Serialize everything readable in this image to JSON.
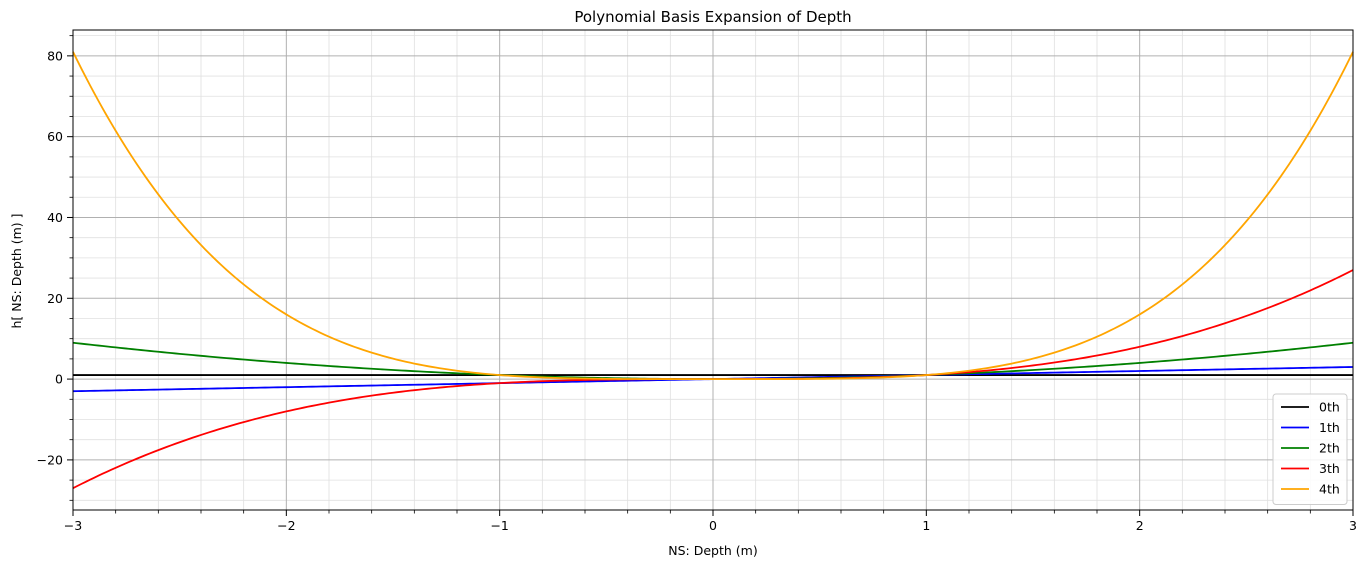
{
  "chart_data": {
    "type": "line",
    "title": "Polynomial Basis Expansion of Depth",
    "xlabel": "NS: Depth (m)",
    "ylabel": "h[ NS: Depth (m) ]",
    "xlim": [
      -3,
      3
    ],
    "ylim": [
      -32.4,
      86.4
    ],
    "x_ticks": [
      -3,
      -2,
      -1,
      0,
      1,
      2,
      3
    ],
    "x_tick_labels": [
      "−3",
      "−2",
      "−1",
      "0",
      "1",
      "2",
      "3"
    ],
    "y_ticks": [
      -20,
      0,
      20,
      40,
      60,
      80
    ],
    "y_tick_labels": [
      "−20",
      "0",
      "20",
      "40",
      "60",
      "80"
    ],
    "x_minor_step": 0.2,
    "y_minor_step": 5,
    "grid": {
      "major": true,
      "minor": true
    },
    "legend_position": "bottom-right",
    "series": [
      {
        "name": "0th",
        "degree": 0,
        "color": "#000000"
      },
      {
        "name": "1th",
        "degree": 1,
        "color": "#0000ff"
      },
      {
        "name": "2th",
        "degree": 2,
        "color": "#008000"
      },
      {
        "name": "3th",
        "degree": 3,
        "color": "#ff0000"
      },
      {
        "name": "4th",
        "degree": 4,
        "color": "#ffa500"
      }
    ],
    "x": [
      -3,
      -2.5,
      -2,
      -1.5,
      -1,
      -0.5,
      0,
      0.5,
      1,
      1.5,
      2,
      2.5,
      3
    ],
    "values_by_series": {
      "0th": [
        1,
        1,
        1,
        1,
        1,
        1,
        1,
        1,
        1,
        1,
        1,
        1,
        1
      ],
      "1th": [
        -3,
        -2.5,
        -2,
        -1.5,
        -1,
        -0.5,
        0,
        0.5,
        1,
        1.5,
        2,
        2.5,
        3
      ],
      "2th": [
        9,
        6.25,
        4,
        2.25,
        1,
        0.25,
        0,
        0.25,
        1,
        2.25,
        4,
        6.25,
        9
      ],
      "3th": [
        -27,
        -15.625,
        -8,
        -3.375,
        -1,
        -0.125,
        0,
        0.125,
        1,
        3.375,
        8,
        15.625,
        27
      ],
      "4th": [
        81,
        39.0625,
        16,
        5.0625,
        1,
        0.0625,
        0,
        0.0625,
        1,
        5.0625,
        16,
        39.0625,
        81
      ]
    }
  }
}
